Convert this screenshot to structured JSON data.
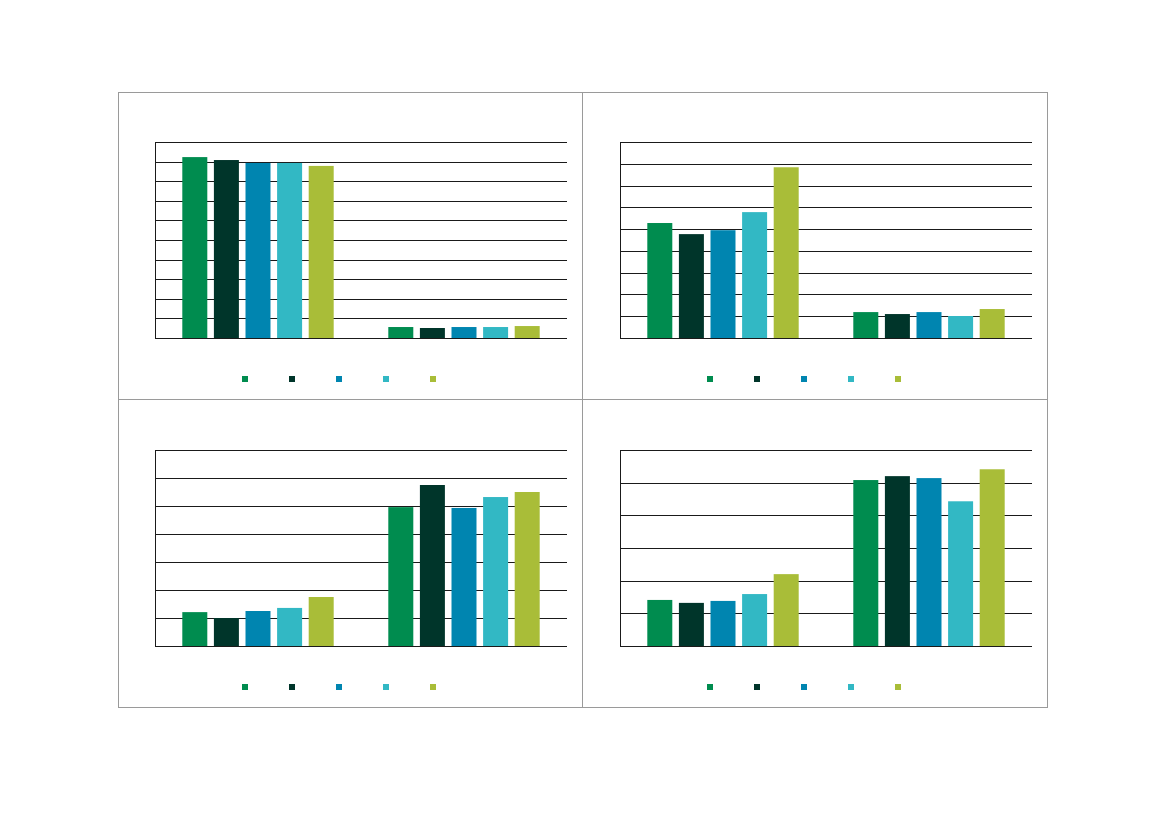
{
  "chart_data": [
    {
      "type": "bar",
      "categories": [
        null,
        null
      ],
      "ylim": [
        0,
        10
      ],
      "yticks": [
        0,
        1,
        2,
        3,
        4,
        5,
        6,
        7,
        8,
        9,
        10
      ],
      "grid": true,
      "series": [
        {
          "color": "#008c4f",
          "values": [
            9.23,
            0.56
          ]
        },
        {
          "color": "#00352a",
          "values": [
            9.08,
            0.51
          ]
        },
        {
          "color": "#0085b0",
          "values": [
            8.93,
            0.56
          ]
        },
        {
          "color": "#32b8c4",
          "values": [
            8.93,
            0.56
          ]
        },
        {
          "color": "#a9bd38",
          "values": [
            8.78,
            0.61
          ]
        }
      ]
    },
    {
      "type": "bar",
      "categories": [
        null,
        null
      ],
      "ylim": [
        0,
        9
      ],
      "yticks": [
        0,
        1,
        2,
        3,
        4,
        5,
        6,
        7,
        8,
        9
      ],
      "grid": true,
      "series": [
        {
          "color": "#008c4f",
          "values": [
            5.28,
            1.19
          ]
        },
        {
          "color": "#00352a",
          "values": [
            4.77,
            1.1
          ]
        },
        {
          "color": "#0085b0",
          "values": [
            4.95,
            1.19
          ]
        },
        {
          "color": "#32b8c4",
          "values": [
            5.78,
            1.01
          ]
        },
        {
          "color": "#a9bd38",
          "values": [
            7.84,
            1.33
          ]
        }
      ]
    },
    {
      "type": "bar",
      "categories": [
        null,
        null
      ],
      "ylim": [
        0,
        7
      ],
      "yticks": [
        0,
        1,
        2,
        3,
        4,
        5,
        6,
        7
      ],
      "grid": true,
      "series": [
        {
          "color": "#008c4f",
          "values": [
            1.21,
            4.96
          ]
        },
        {
          "color": "#00352a",
          "values": [
            1.0,
            5.75
          ]
        },
        {
          "color": "#0085b0",
          "values": [
            1.25,
            4.93
          ]
        },
        {
          "color": "#32b8c4",
          "values": [
            1.36,
            5.32
          ]
        },
        {
          "color": "#a9bd38",
          "values": [
            1.75,
            5.5
          ]
        }
      ]
    },
    {
      "type": "bar",
      "categories": [
        null,
        null
      ],
      "ylim": [
        0,
        6
      ],
      "yticks": [
        0,
        1,
        2,
        3,
        4,
        5,
        6
      ],
      "grid": true,
      "series": [
        {
          "color": "#008c4f",
          "values": [
            1.41,
            5.08
          ]
        },
        {
          "color": "#00352a",
          "values": [
            1.32,
            5.2
          ]
        },
        {
          "color": "#0085b0",
          "values": [
            1.38,
            5.14
          ]
        },
        {
          "color": "#32b8c4",
          "values": [
            1.59,
            4.43
          ]
        },
        {
          "color": "#a9bd38",
          "values": [
            2.2,
            5.41
          ]
        }
      ]
    }
  ]
}
